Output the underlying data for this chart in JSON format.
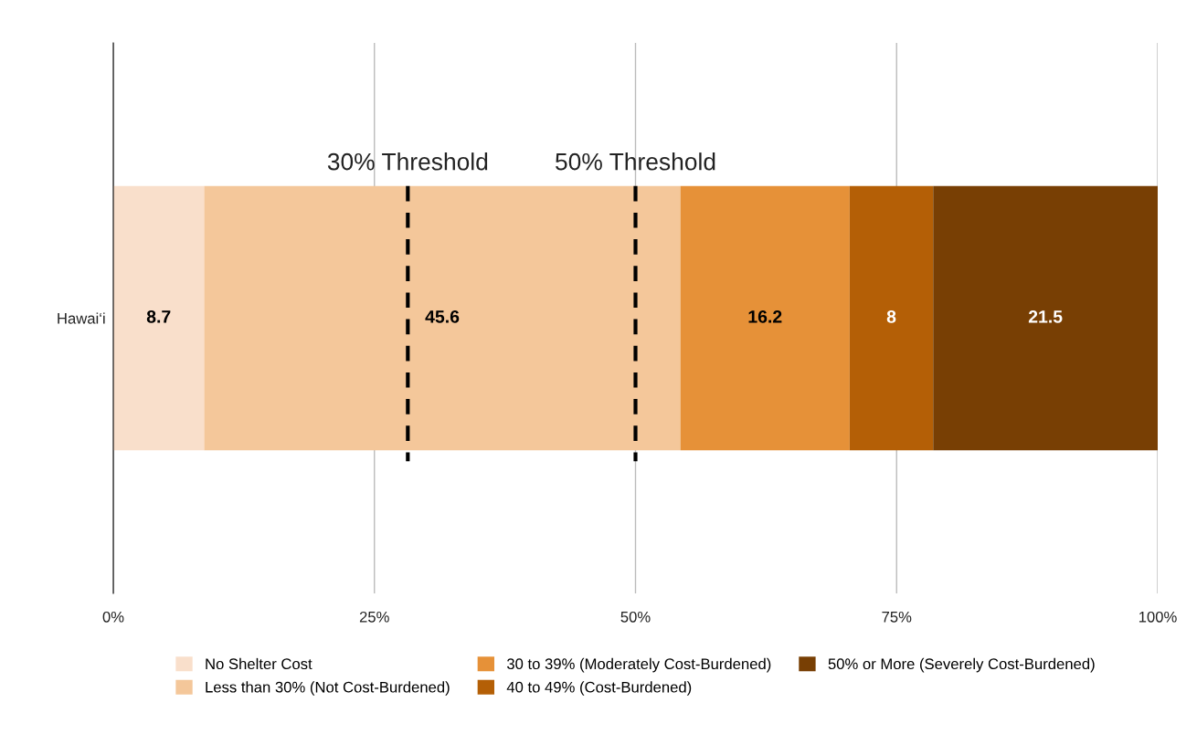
{
  "chart_data": {
    "type": "bar",
    "orientation": "horizontal",
    "stacked": true,
    "categories": [
      "Hawai‘i"
    ],
    "series": [
      {
        "name": "No Shelter Cost",
        "color": "#f9dfcb",
        "values": [
          8.7
        ]
      },
      {
        "name": "Less than 30% (Not Cost-Burdened)",
        "color": "#f4c79a",
        "values": [
          45.6
        ]
      },
      {
        "name": "30 to 39% (Moderately Cost-Burdened)",
        "color": "#e69138",
        "values": [
          16.2
        ]
      },
      {
        "name": "40 to 49% (Cost-Burdened)",
        "color": "#b45f06",
        "values": [
          8
        ]
      },
      {
        "name": "50% or More (Severely Cost-Burdened)",
        "color": "#783f04",
        "values": [
          21.5
        ]
      }
    ],
    "xlim": [
      0,
      100
    ],
    "xticks": [
      {
        "value": 0,
        "label": "0%"
      },
      {
        "value": 25,
        "label": "25%"
      },
      {
        "value": 50,
        "label": "50%"
      },
      {
        "value": 75,
        "label": "75%"
      },
      {
        "value": 100,
        "label": "100%"
      }
    ],
    "ref_lines": [
      {
        "axis": "x",
        "value": 28.2,
        "label": "30% Threshold",
        "color": "#000000",
        "line_style": "dashed"
      },
      {
        "axis": "x",
        "value": 50,
        "label": "50% Threshold",
        "color": "#000000",
        "line_style": "dashed"
      }
    ],
    "data_labels": true,
    "grid": "x",
    "legend": "bottom"
  }
}
